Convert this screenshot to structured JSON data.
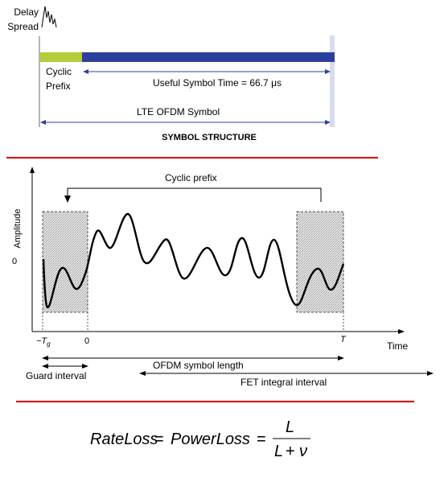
{
  "symbol_structure": {
    "delay_spread_line1": "Delay",
    "delay_spread_line2": "Spread",
    "cyclic_prefix_line1": "Cyclic",
    "cyclic_prefix_line2": "Prefix",
    "useful_symbol_time": "Useful Symbol Time = 66.7 μs",
    "lte_ofdm_symbol": "LTE OFDM Symbol",
    "title": "SYMBOL STRUCTURE",
    "colors": {
      "cyclic_prefix_bar": "#b5cc3a",
      "symbol_bar": "#2c3f9c",
      "arrow": "#2c3f9c",
      "divider": "#cc1f1f"
    }
  },
  "waveform_figure": {
    "y_axis_label": "Amplitude",
    "y_zero_label": "0",
    "cyclic_prefix_label": "Cyclic prefix",
    "x_tick_minus_tg": "−T",
    "x_tick_minus_tg_sub": "g",
    "x_tick_zero": "0",
    "x_tick_t": "T",
    "x_axis_label": "Time",
    "ofdm_symbol_length": "OFDM symbol length",
    "guard_interval": "Guard interval",
    "fft_integral_interval": "FET integral interval"
  },
  "formula": {
    "lhs1": "RateLoss",
    "eq1": "=",
    "lhs2": "PowerLoss",
    "eq2": "=",
    "numerator": "L",
    "denominator_a": "L",
    "denominator_plus": "+",
    "denominator_b": "ν"
  }
}
